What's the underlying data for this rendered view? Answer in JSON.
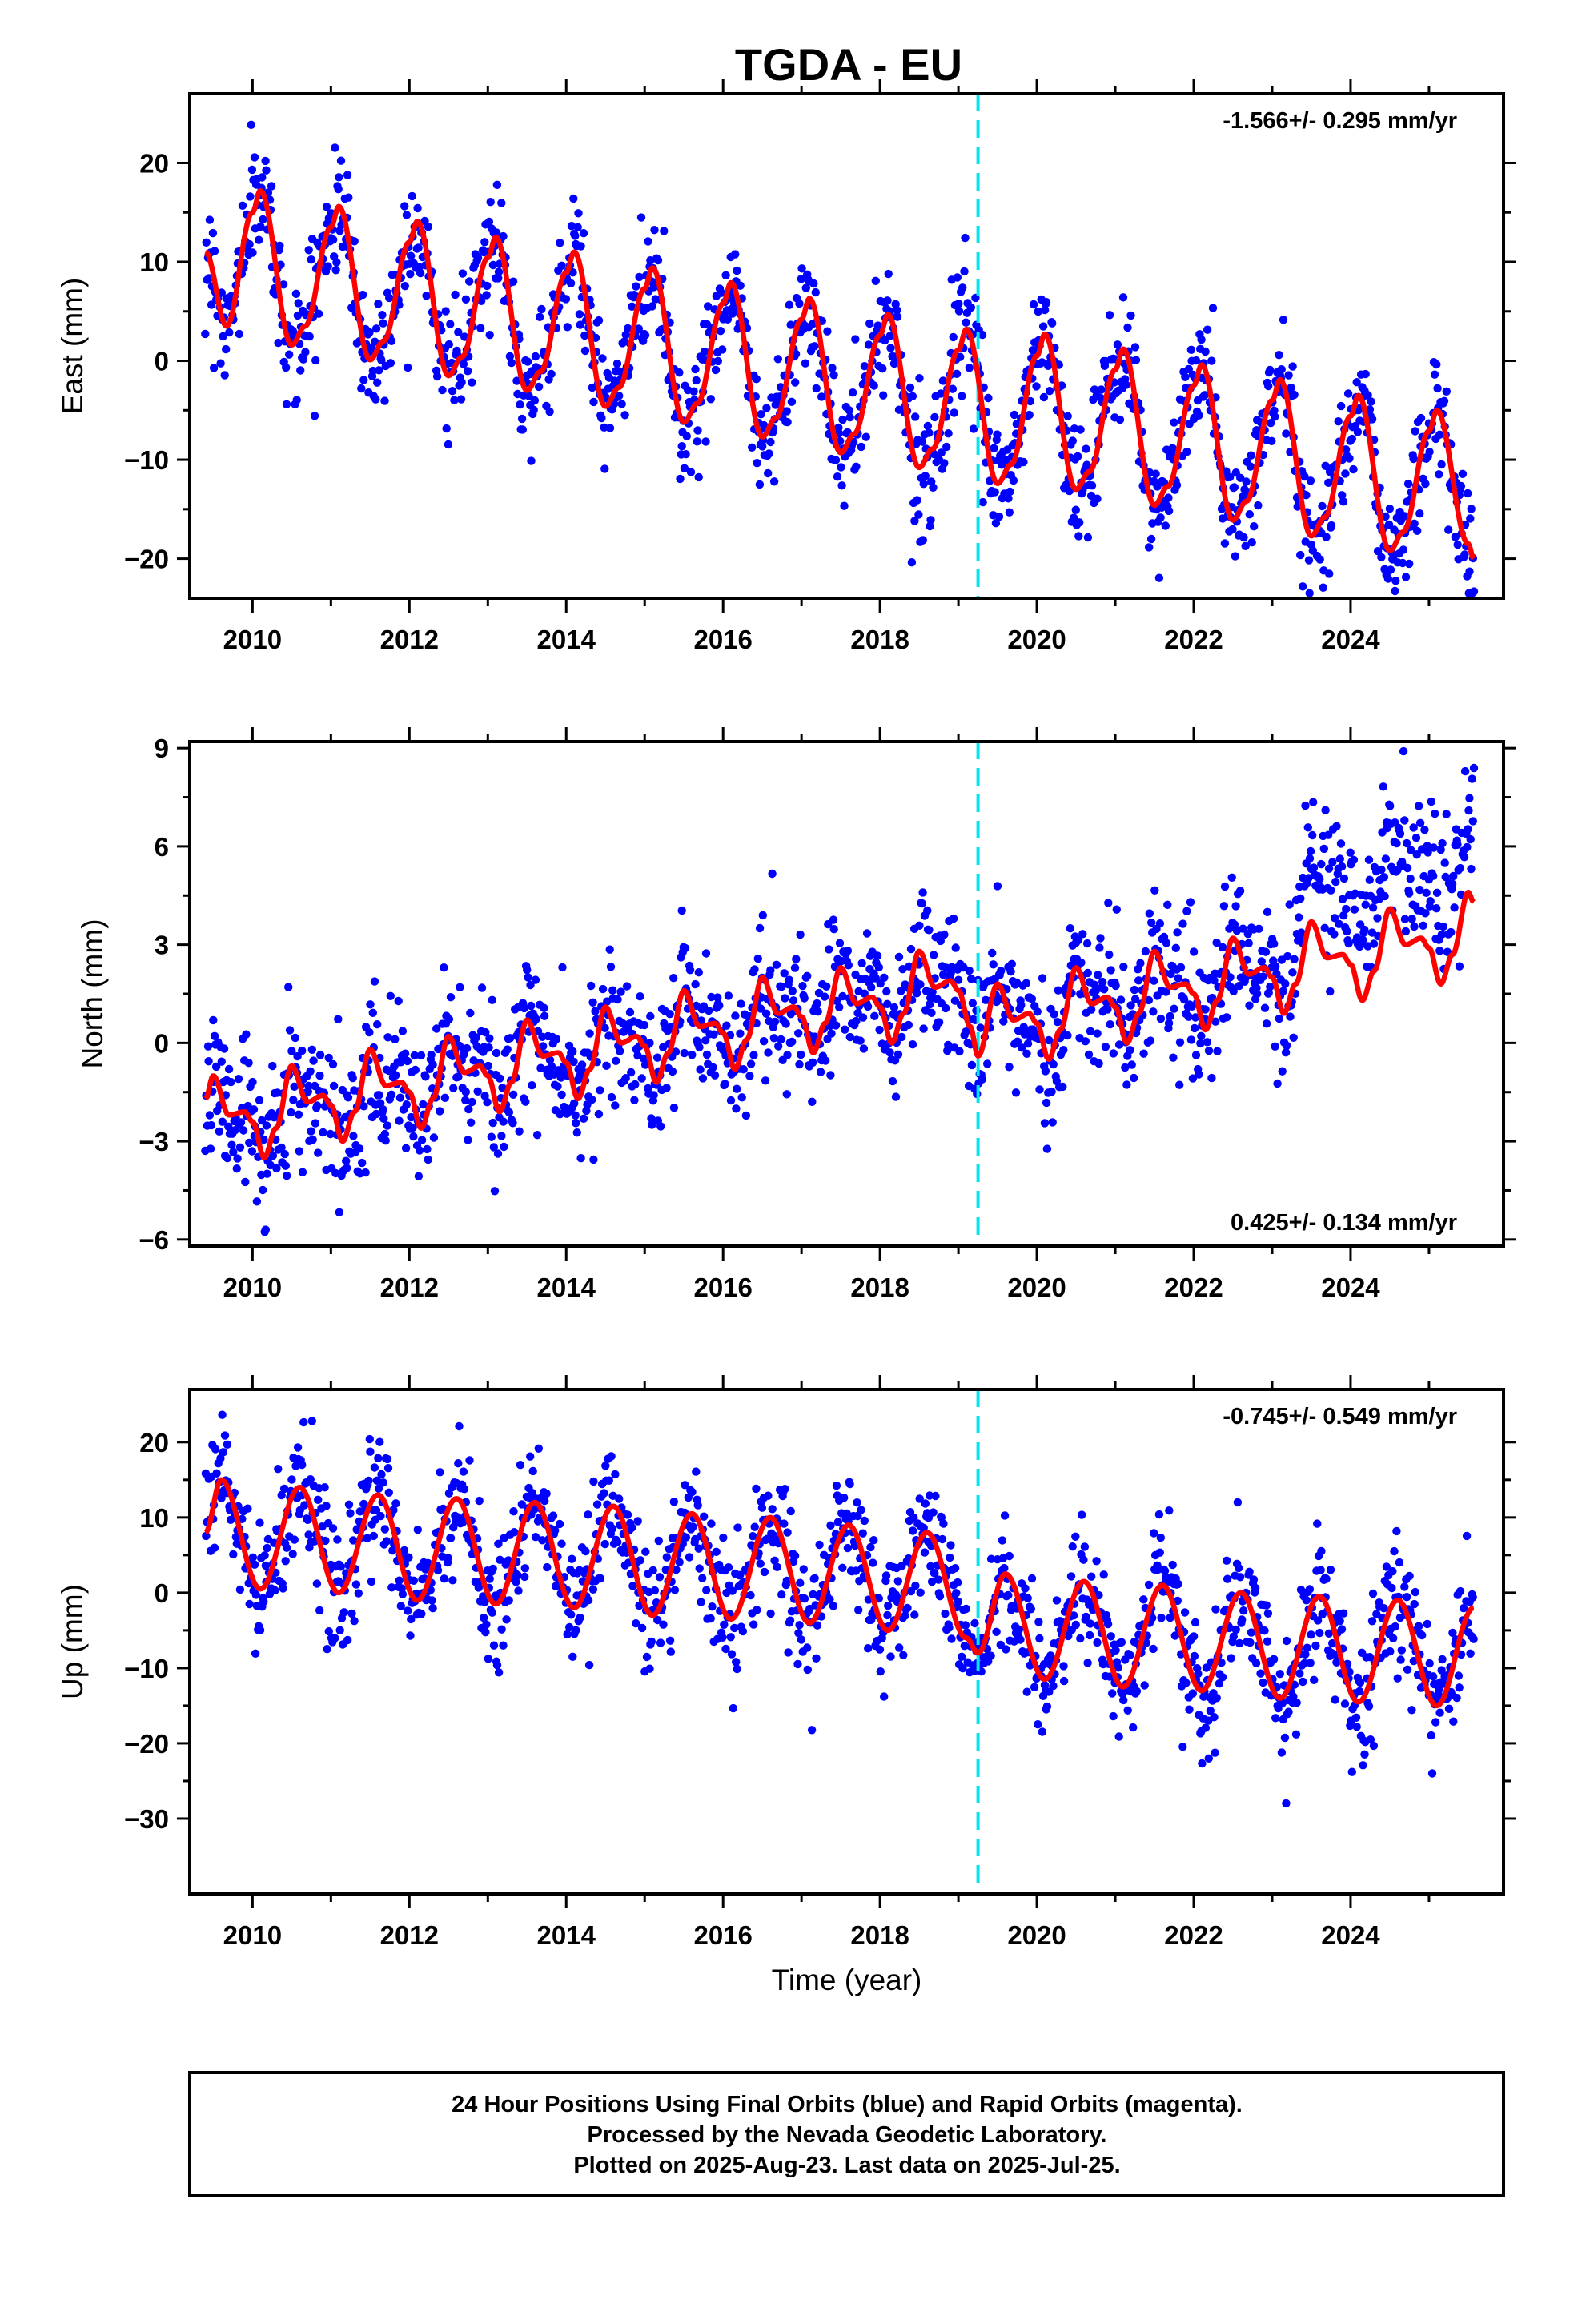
{
  "title": "TGDA - EU",
  "colors": {
    "points": "#0000ff",
    "fit": "#ff0000",
    "event_line": "#00e5ee",
    "frame": "#000000"
  },
  "chart_data": [
    {
      "type": "scatter",
      "component": "East",
      "ylabel": "East (mm)",
      "xlabel": "",
      "xlim": [
        2009.2,
        2025.95
      ],
      "ylim": [
        -24,
        27
      ],
      "xticks": [
        2010,
        2012,
        2014,
        2016,
        2018,
        2020,
        2022,
        2024
      ],
      "yticks": [
        -20,
        -10,
        0,
        10,
        20
      ],
      "rate_label": "-1.566+/- 0.295 mm/yr",
      "rate_position": "top-right",
      "event_line_x": 2019.25,
      "grid": false,
      "data_range": [
        2009.4,
        2025.57
      ],
      "series": [
        {
          "name": "model fit",
          "x": [
            2009.4,
            2009.67,
            2010.0,
            2010.1,
            2010.5,
            2010.67,
            2011.0,
            2011.1,
            2011.5,
            2011.67,
            2012.0,
            2012.1,
            2012.5,
            2012.67,
            2013.0,
            2013.1,
            2013.5,
            2013.67,
            2014.0,
            2014.1,
            2014.5,
            2014.67,
            2015.0,
            2015.1,
            2015.5,
            2015.67,
            2016.0,
            2016.1,
            2016.5,
            2016.67,
            2017.0,
            2017.1,
            2017.5,
            2017.67,
            2018.0,
            2018.1,
            2018.5,
            2018.67,
            2019.0,
            2019.1,
            2019.5,
            2019.67,
            2020.0,
            2020.1,
            2020.5,
            2020.67,
            2021.0,
            2021.1,
            2021.5,
            2021.67,
            2022.0,
            2022.1,
            2022.5,
            2022.67,
            2023.0,
            2023.1,
            2023.5,
            2023.67,
            2024.0,
            2024.1,
            2024.5,
            2024.67,
            2025.0,
            2025.1,
            2025.5,
            2025.57
          ],
          "y": [
            11.0,
            3.5,
            15.0,
            17.2,
            1.6,
            3.5,
            13.5,
            15.6,
            0.1,
            2.0,
            12.0,
            14.1,
            -1.5,
            0.4,
            10.4,
            12.5,
            -3.0,
            -1.1,
            8.9,
            11.0,
            -4.6,
            -2.7,
            7.3,
            9.4,
            -6.2,
            -4.3,
            5.8,
            7.9,
            -7.7,
            -5.8,
            4.2,
            6.3,
            -9.3,
            -7.4,
            2.6,
            4.7,
            -10.8,
            -8.9,
            1.1,
            3.2,
            -12.4,
            -10.5,
            0.5,
            2.7,
            -13.0,
            -11.2,
            -0.9,
            1.2,
            -14.6,
            -12.7,
            -2.5,
            -0.4,
            -16.1,
            -14.2,
            -4.0,
            -1.9,
            -17.7,
            -15.8,
            -5.6,
            -3.5,
            -19.2,
            -17.3,
            -7.1,
            -5.0,
            -18.5,
            -20.0
          ]
        }
      ]
    },
    {
      "type": "scatter",
      "component": "North",
      "ylabel": "North (mm)",
      "xlabel": "",
      "xlim": [
        2009.2,
        2025.95
      ],
      "ylim": [
        -6.2,
        9.2
      ],
      "xticks": [
        2010,
        2012,
        2014,
        2016,
        2018,
        2020,
        2022,
        2024
      ],
      "yticks": [
        -6,
        -3,
        0,
        3,
        6,
        9
      ],
      "rate_label": "0.425+/- 0.134 mm/yr",
      "rate_position": "bottom-right",
      "event_line_x": 2019.25,
      "grid": false,
      "data_range": [
        2009.4,
        2025.57
      ],
      "series": [
        {
          "name": "model fit",
          "x": [
            2009.4,
            2009.5,
            2009.7,
            2009.9,
            2010.0,
            2010.15,
            2010.3,
            2010.5,
            2010.7,
            2010.9,
            2011.0,
            2011.15,
            2011.3,
            2011.5,
            2011.7,
            2011.9,
            2012.0,
            2012.15,
            2012.3,
            2012.5,
            2012.7,
            2012.9,
            2013.0,
            2013.15,
            2013.3,
            2013.5,
            2013.7,
            2013.9,
            2014.0,
            2014.15,
            2014.3,
            2014.5,
            2014.7,
            2014.9,
            2015.0,
            2015.15,
            2015.3,
            2015.5,
            2015.7,
            2015.9,
            2016.0,
            2016.15,
            2016.3,
            2016.5,
            2016.7,
            2016.9,
            2017.0,
            2017.15,
            2017.3,
            2017.5,
            2017.7,
            2017.9,
            2018.0,
            2018.15,
            2018.3,
            2018.5,
            2018.7,
            2018.9,
            2019.0,
            2019.15,
            2019.25,
            2019.5,
            2019.7,
            2019.9,
            2020.0,
            2020.15,
            2020.3,
            2020.5,
            2020.7,
            2020.9,
            2021.0,
            2021.15,
            2021.3,
            2021.5,
            2021.7,
            2021.9,
            2022.0,
            2022.15,
            2022.3,
            2022.5,
            2022.7,
            2022.9,
            2023.0,
            2023.15,
            2023.3,
            2023.5,
            2023.7,
            2023.9,
            2024.0,
            2024.15,
            2024.3,
            2024.5,
            2024.7,
            2024.9,
            2025.0,
            2025.15,
            2025.3,
            2025.5,
            2025.57
          ],
          "y": [
            -1.7,
            -1.0,
            -2.2,
            -2.1,
            -2.4,
            -3.5,
            -2.6,
            -0.7,
            -1.8,
            -1.6,
            -1.9,
            -3.0,
            -2.1,
            -0.2,
            -1.3,
            -1.2,
            -1.5,
            -2.6,
            -1.7,
            0.2,
            -0.9,
            -0.7,
            -1.0,
            -2.1,
            -1.2,
            0.7,
            -0.4,
            -0.3,
            -0.6,
            -1.7,
            -0.8,
            1.1,
            0.0,
            0.2,
            -0.1,
            -1.2,
            -0.3,
            1.6,
            0.5,
            0.6,
            0.3,
            -0.8,
            0.1,
            2.0,
            0.9,
            1.1,
            0.8,
            -0.3,
            0.6,
            2.3,
            1.2,
            1.4,
            1.1,
            0.0,
            0.9,
            2.8,
            1.7,
            1.9,
            1.6,
            0.5,
            -0.4,
            1.8,
            0.7,
            0.9,
            0.6,
            -0.5,
            0.4,
            2.3,
            1.2,
            1.4,
            1.1,
            0.0,
            0.9,
            2.8,
            1.7,
            1.8,
            1.5,
            0.4,
            1.3,
            3.2,
            2.1,
            2.3,
            2.0,
            0.9,
            1.8,
            3.7,
            2.6,
            2.7,
            2.4,
            1.3,
            2.2,
            4.1,
            3.0,
            3.2,
            2.9,
            1.8,
            2.7,
            4.6,
            4.3
          ]
        }
      ]
    },
    {
      "type": "scatter",
      "component": "Up",
      "ylabel": "Up (mm)",
      "xlabel": "Time (year)",
      "xlim": [
        2009.2,
        2025.95
      ],
      "ylim": [
        -40,
        27
      ],
      "xticks": [
        2010,
        2012,
        2014,
        2016,
        2018,
        2020,
        2022,
        2024
      ],
      "yticks": [
        -30,
        -20,
        -10,
        0,
        10,
        20
      ],
      "rate_label": "-0.745+/- 0.549 mm/yr",
      "rate_position": "top-right",
      "event_line_x": 2019.25,
      "grid": false,
      "data_range": [
        2009.4,
        2025.57
      ],
      "series": [
        {
          "name": "model fit",
          "x": [
            2009.4,
            2009.6,
            2010.1,
            2010.6,
            2011.1,
            2011.6,
            2012.1,
            2012.6,
            2013.1,
            2013.6,
            2014.1,
            2014.6,
            2015.1,
            2015.6,
            2016.1,
            2016.6,
            2017.1,
            2017.6,
            2018.1,
            2018.6,
            2019.1,
            2019.25,
            2019.6,
            2020.1,
            2020.6,
            2021.1,
            2021.6,
            2022.1,
            2022.6,
            2023.1,
            2023.6,
            2024.1,
            2024.6,
            2025.1,
            2025.57
          ],
          "y": [
            8.0,
            15.0,
            0.5,
            14.0,
            0.0,
            13.0,
            -1.0,
            12.5,
            -1.5,
            12.0,
            -2.0,
            11.5,
            -3.0,
            10.5,
            -3.5,
            10.0,
            -4.0,
            9.0,
            -5.0,
            8.0,
            -6.0,
            -8.0,
            2.5,
            -11.5,
            1.5,
            -12.5,
            1.0,
            -13.0,
            0.0,
            -14.0,
            -0.5,
            -14.5,
            -1.0,
            -15.0,
            -2.0
          ]
        }
      ]
    }
  ],
  "footer": {
    "line1": "24 Hour Positions Using Final Orbits (blue) and Rapid Orbits (magenta).",
    "line2": "Processed by the Nevada Geodetic Laboratory.",
    "line3": "Plotted on 2025-Aug-23. Last data on 2025-Jul-25."
  }
}
